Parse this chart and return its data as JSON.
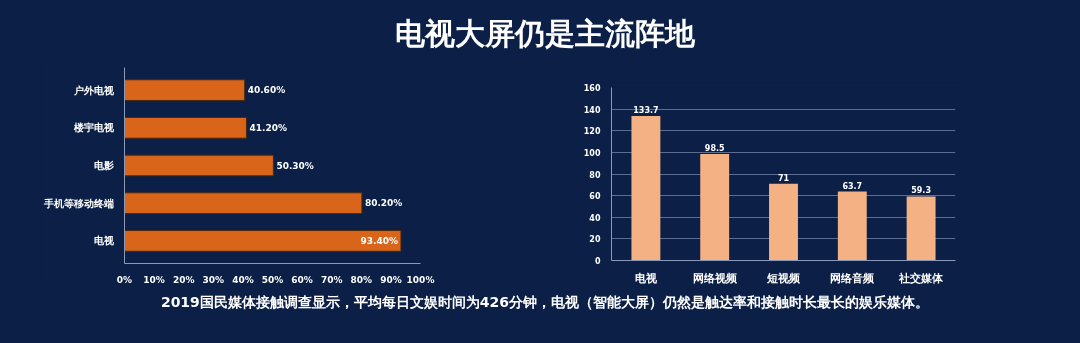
{
  "chart_data": [
    {
      "type": "bar",
      "orientation": "horizontal",
      "title": "电视大屏仍是主流阵地",
      "categories": [
        "户外电视",
        "楼宇电视",
        "电影",
        "手机等移动终端",
        "电视"
      ],
      "values": [
        40.6,
        41.2,
        50.3,
        80.2,
        93.4
      ],
      "value_labels": [
        "40.60%",
        "41.20%",
        "50.30%",
        "80.20%",
        "93.40%"
      ],
      "color": "#d8651a",
      "xlim": [
        0,
        100
      ],
      "xticks": [
        {
          "value": 0,
          "label": "0%"
        },
        {
          "value": 10,
          "label": "10%"
        },
        {
          "value": 20,
          "label": "20%"
        },
        {
          "value": 30,
          "label": "30%"
        },
        {
          "value": 40,
          "label": "40%"
        },
        {
          "value": 50,
          "label": "50%"
        },
        {
          "value": 60,
          "label": "60%"
        },
        {
          "value": 70,
          "label": "70%"
        },
        {
          "value": 80,
          "label": "80%"
        },
        {
          "value": 90,
          "label": "90%"
        },
        {
          "value": 100,
          "label": "100%"
        }
      ],
      "grid": false
    },
    {
      "type": "bar",
      "categories": [
        "电视",
        "网络视频",
        "短视频",
        "网络音频",
        "社交媒体"
      ],
      "values": [
        133.7,
        98.5,
        71,
        63.7,
        59.3
      ],
      "color": "#f4b183",
      "ylim": [
        0,
        160
      ],
      "yticks": [
        0,
        20,
        40,
        60,
        80,
        100,
        120,
        140,
        160
      ],
      "grid": "y",
      "data_labels": true,
      "annotations": [
        "2019国民媒体接触调查显示，平均每日文娱时间为426分钟，电视（智能大屏）仍然是触达率和接触时长最长的娱乐媒体。"
      ]
    }
  ]
}
